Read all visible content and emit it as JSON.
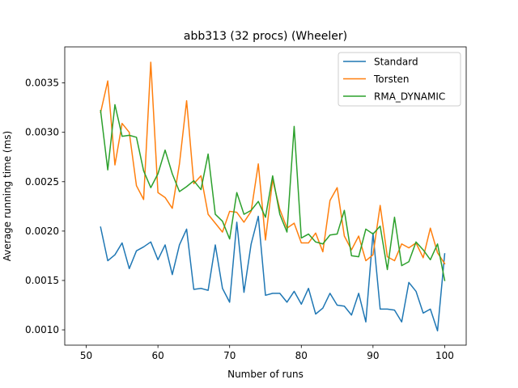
{
  "chart_data": {
    "type": "line",
    "title": "abb313 (32 procs) (Wheeler)",
    "xlabel": "Number of runs",
    "ylabel": "Average running time (ms)",
    "xlim": [
      47,
      103
    ],
    "ylim": [
      0.000845,
      0.003865
    ],
    "xticks": [
      50,
      60,
      70,
      80,
      90,
      100
    ],
    "yticks": [
      0.001,
      0.0015,
      0.002,
      0.0025,
      0.003,
      0.0035
    ],
    "ytick_labels": [
      "0.0010",
      "0.0015",
      "0.0020",
      "0.0025",
      "0.0030",
      "0.0035"
    ],
    "legend_position": "top-right",
    "x": [
      52,
      53,
      54,
      55,
      56,
      57,
      58,
      59,
      60,
      61,
      62,
      63,
      64,
      65,
      66,
      67,
      68,
      69,
      70,
      71,
      72,
      73,
      74,
      75,
      76,
      77,
      78,
      79,
      80,
      81,
      82,
      83,
      84,
      85,
      86,
      87,
      88,
      89,
      90,
      91,
      92,
      93,
      94,
      95,
      96,
      97,
      98,
      99,
      100
    ],
    "series": [
      {
        "name": "Standard",
        "color": "#1f77b4",
        "values": [
          0.00204,
          0.0017,
          0.00176,
          0.00188,
          0.00162,
          0.0018,
          0.00184,
          0.00189,
          0.00171,
          0.00186,
          0.00156,
          0.00186,
          0.00202,
          0.00141,
          0.00142,
          0.0014,
          0.00186,
          0.00142,
          0.00128,
          0.00209,
          0.00138,
          0.00187,
          0.00215,
          0.00135,
          0.00137,
          0.00137,
          0.00128,
          0.00139,
          0.00126,
          0.00142,
          0.00116,
          0.00122,
          0.00137,
          0.00125,
          0.00124,
          0.00115,
          0.00137,
          0.00108,
          0.00198,
          0.00121,
          0.00121,
          0.0012,
          0.00108,
          0.00148,
          0.00139,
          0.00117,
          0.00121,
          0.00099,
          0.00177
        ]
      },
      {
        "name": "Torsten",
        "color": "#ff7f0e",
        "values": [
          0.0032,
          0.00352,
          0.00267,
          0.00309,
          0.003,
          0.00246,
          0.00232,
          0.00371,
          0.00239,
          0.00234,
          0.00223,
          0.00268,
          0.00332,
          0.00248,
          0.00256,
          0.00217,
          0.00208,
          0.00199,
          0.0022,
          0.00219,
          0.00209,
          0.0022,
          0.00268,
          0.00191,
          0.00252,
          0.00222,
          0.00203,
          0.00208,
          0.00188,
          0.00188,
          0.00198,
          0.00179,
          0.00231,
          0.00244,
          0.00195,
          0.00181,
          0.00195,
          0.0017,
          0.00176,
          0.00226,
          0.00174,
          0.0017,
          0.00187,
          0.00183,
          0.00188,
          0.00173,
          0.00203,
          0.00178,
          0.00167
        ]
      },
      {
        "name": "RMA_DYNAMIC",
        "color": "#2ca02c",
        "values": [
          0.00322,
          0.00262,
          0.00328,
          0.00296,
          0.00297,
          0.00295,
          0.00261,
          0.00244,
          0.00258,
          0.00282,
          0.00258,
          0.0024,
          0.00245,
          0.00251,
          0.00242,
          0.00278,
          0.00217,
          0.0021,
          0.00192,
          0.00239,
          0.00217,
          0.00221,
          0.0023,
          0.00214,
          0.00256,
          0.00217,
          0.00199,
          0.00306,
          0.00193,
          0.00197,
          0.00189,
          0.00187,
          0.00196,
          0.00197,
          0.00221,
          0.00175,
          0.00174,
          0.00202,
          0.00197,
          0.00205,
          0.00161,
          0.00214,
          0.00165,
          0.00169,
          0.00189,
          0.00181,
          0.00171,
          0.00187,
          0.0015
        ]
      }
    ]
  }
}
